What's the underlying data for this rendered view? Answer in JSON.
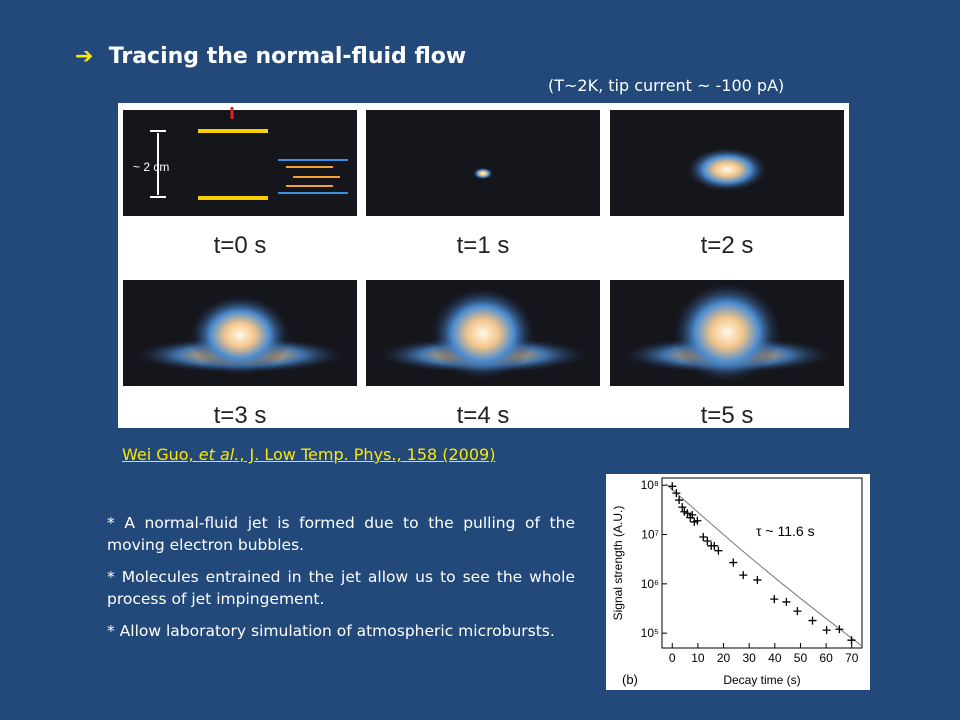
{
  "title": "Tracing the normal-fluid flow",
  "subtitle": "(T~2K, tip current ~ -100 pA)",
  "panels": {
    "scale_label": "~ 2 cm",
    "labels": [
      "t=0 s",
      "t=1 s",
      "t=2 s",
      "t=3 s",
      "t=4 s",
      "t=5 s"
    ]
  },
  "citation": [
    "Wei Guo, ",
    "et al.",
    ", J. Low Temp. Phys., 158 (2009)"
  ],
  "bullets": [
    "* A normal-fluid jet is formed due to the pulling of the moving electron bubbles.",
    "* Molecules entrained in the jet allow us to see the whole process of jet impingement.",
    "* Allow laboratory simulation of atmospheric microbursts."
  ],
  "chart_data": {
    "type": "scatter",
    "xlabel": "Decay time (s)",
    "ylabel": "Signal strength (A.U.)",
    "annotation": "τ ~ 11.6 s",
    "panel_label": "(b)",
    "ylog": true,
    "color": "#000000",
    "x": [
      0,
      1.6,
      2.7,
      3.9,
      4.7,
      5.9,
      7.0,
      7.8,
      8.6,
      9.8,
      12.1,
      13.7,
      15.2,
      16.4,
      18.0,
      23.8,
      27.7,
      33.2,
      39.8,
      44.5,
      48.8,
      54.7,
      60.2,
      65.2,
      69.9
    ],
    "values": [
      95000000,
      69000000,
      50000000,
      36000000,
      29000000,
      27000000,
      22000000,
      25000000,
      18000000,
      19000000,
      8900000,
      7400000,
      5900000,
      5900000,
      4700000,
      2700000,
      1500000,
      1200000,
      490000,
      430000,
      280000,
      180000,
      115000,
      120000,
      72000
    ],
    "xlim": [
      -4,
      74
    ],
    "ylim": [
      50000,
      140000000
    ],
    "xticks": [
      0,
      10,
      20,
      30,
      40,
      50,
      60,
      70
    ],
    "yticks": [
      {
        "value": 100000,
        "label": "10⁵"
      },
      {
        "value": 1000000,
        "label": "10⁶"
      },
      {
        "value": 10000000,
        "label": "10⁷"
      },
      {
        "value": 100000000,
        "label": "10⁸"
      }
    ]
  }
}
